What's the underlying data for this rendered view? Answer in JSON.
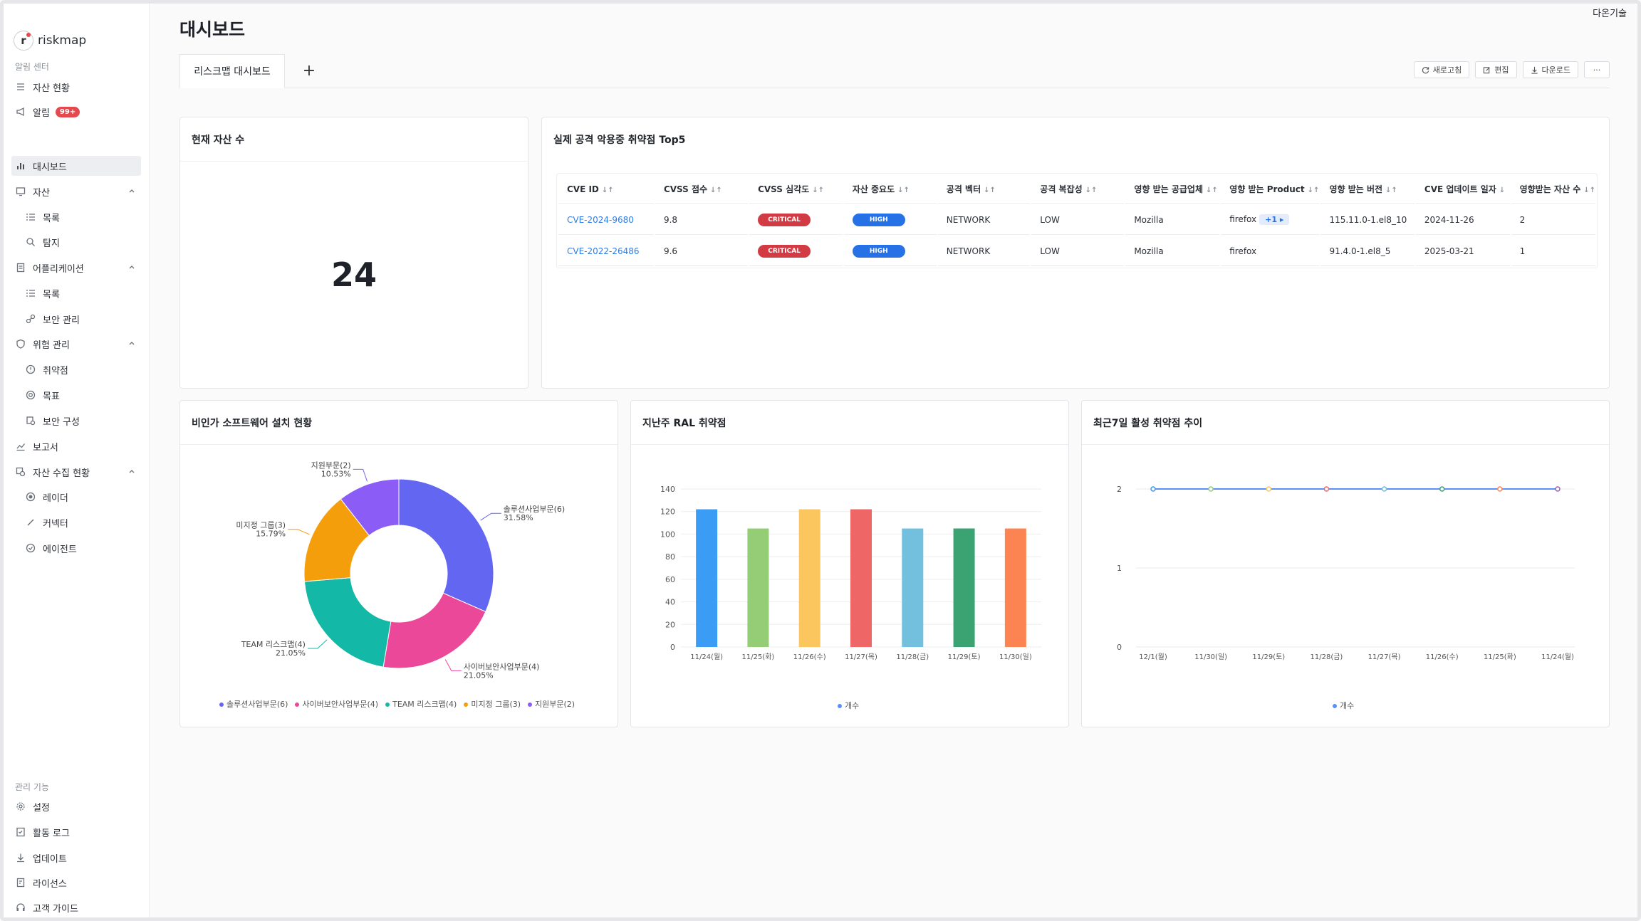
{
  "app": {
    "logo_text": "riskmap",
    "company": "다온기술",
    "page_title": "대시보드"
  },
  "sidebar": {
    "section_alert": "알림 센터",
    "section_manage": "관리 기능",
    "items": {
      "asset_status": "자산 현황",
      "alerts": "알림",
      "alerts_badge": "99+",
      "dashboard": "대시보드",
      "assets": "자산",
      "assets_list": "목록",
      "assets_detect": "탐지",
      "apps": "어플리케이션",
      "apps_list": "목록",
      "apps_security": "보안 관리",
      "risk": "위험 관리",
      "risk_vuln": "취약점",
      "risk_target": "목표",
      "risk_config": "보안 구성",
      "report": "보고서",
      "collect": "자산 수집 현황",
      "collect_radar": "레이더",
      "collect_connector": "커넥터",
      "collect_agent": "에이전트",
      "settings": "설정",
      "activity_log": "활동 로그",
      "update": "업데이트",
      "license": "라이선스",
      "guide": "고객 가이드"
    }
  },
  "tabs": {
    "active": "리스크맵 대시보드",
    "add": "+"
  },
  "toolbar": {
    "refresh": "새로고침",
    "edit": "편집",
    "download": "다운로드",
    "more": "···"
  },
  "asset_count": {
    "title": "현재 자산 수",
    "value": "24"
  },
  "top5": {
    "title": "실제 공격 악용중 취약점 Top5",
    "headers": [
      "CVE ID",
      "CVSS 점수",
      "CVSS 심각도",
      "자산 중요도",
      "공격 벡터",
      "공격 복잡성",
      "영향 받는 공급업체",
      "영향 받는 Product",
      "영향 받는 버전",
      "CVE 업데이트 일자",
      "영향받는 자산 수"
    ],
    "rows": [
      {
        "cve": "CVE-2024-9680",
        "score": "9.8",
        "severity": "CRITICAL",
        "importance": "HIGH",
        "vector": "NETWORK",
        "complexity": "LOW",
        "vendor": "Mozilla",
        "product": "firefox",
        "product_more": "+1",
        "version": "115.11.0-1.el8_10",
        "updated": "2024-11-26",
        "assets": "2"
      },
      {
        "cve": "CVE-2022-26486",
        "score": "9.6",
        "severity": "CRITICAL",
        "importance": "HIGH",
        "vector": "NETWORK",
        "complexity": "LOW",
        "vendor": "Mozilla",
        "product": "firefox",
        "product_more": "",
        "version": "91.4.0-1.el8_5",
        "updated": "2025-03-21",
        "assets": "1"
      }
    ]
  },
  "donut_card": {
    "title": "비인가 소프트웨어 설치 현황"
  },
  "bar_card": {
    "title": "지난주 RAL 취약점"
  },
  "line_card": {
    "title": "최근7일 활성 취약점 추이"
  },
  "chart_data": [
    {
      "type": "pie",
      "title": "비인가 소프트웨어 설치 현황",
      "series": [
        {
          "name": "솔루션사업부문(6)",
          "value": 6,
          "percent": "31.58%",
          "color": "#6366f1"
        },
        {
          "name": "사이버보안사업부문(4)",
          "value": 4,
          "percent": "21.05%",
          "color": "#ec4899"
        },
        {
          "name": "TEAM 리스크맵(4)",
          "value": 4,
          "percent": "21.05%",
          "color": "#14b8a6"
        },
        {
          "name": "미지정 그룹(3)",
          "value": 3,
          "percent": "15.79%",
          "color": "#f59e0b"
        },
        {
          "name": "지원부문(2)",
          "value": 2,
          "percent": "10.53%",
          "color": "#8b5cf6"
        }
      ]
    },
    {
      "type": "bar",
      "title": "지난주 RAL 취약점",
      "categories": [
        "11/24(월)",
        "11/25(화)",
        "11/26(수)",
        "11/27(목)",
        "11/28(금)",
        "11/29(토)",
        "11/30(일)"
      ],
      "values": [
        122,
        105,
        122,
        122,
        105,
        105,
        105
      ],
      "colors": [
        "#3b9cf5",
        "#95cc76",
        "#fbc65e",
        "#ee6666",
        "#73c0de",
        "#3ba272",
        "#fc8452"
      ],
      "series_name": "개수",
      "ylim": [
        0,
        140
      ],
      "yticks": [
        0,
        20,
        40,
        60,
        80,
        100,
        120,
        140
      ]
    },
    {
      "type": "line",
      "title": "최근7일 활성 취약점 추이",
      "x": [
        "12/1(월)",
        "11/30(일)",
        "11/29(토)",
        "11/28(금)",
        "11/27(목)",
        "11/26(수)",
        "11/25(화)",
        "11/24(월)"
      ],
      "values": [
        2,
        2,
        2,
        2,
        2,
        2,
        2,
        2
      ],
      "point_colors": [
        "#3b9cf5",
        "#95cc76",
        "#fbc65e",
        "#ee6666",
        "#73c0de",
        "#3ba272",
        "#fc8452",
        "#9a60b4"
      ],
      "series_name": "개수",
      "ylim": [
        0,
        2
      ],
      "yticks": [
        0,
        1,
        2
      ]
    }
  ]
}
